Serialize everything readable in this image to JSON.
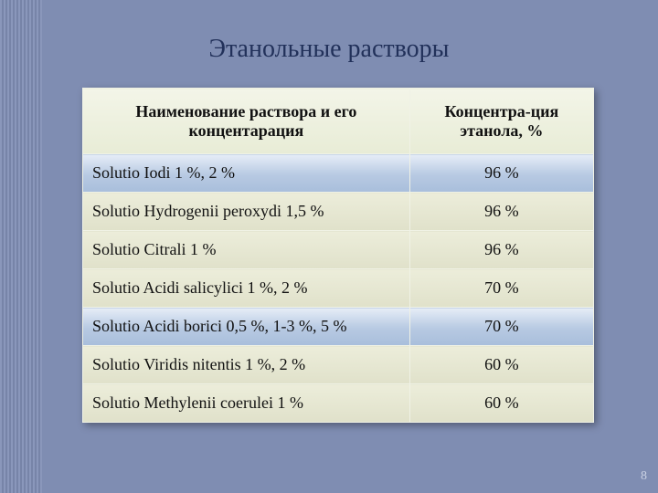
{
  "slide": {
    "title": "Этанольные растворы",
    "page_number": "8",
    "background_color": "#7f8db2",
    "title_color": "#22315a",
    "title_fontsize": 28
  },
  "table": {
    "columns": [
      {
        "label": "Наименование раствора и его концентарация",
        "width_pct": 64,
        "align": "left"
      },
      {
        "label": "Концентра-ция этанола, %",
        "width_pct": 36,
        "align": "center"
      }
    ],
    "header_bg": "#eef1e0",
    "row_bg_blue": "#b9cbe3",
    "row_bg_tan": "#e6e7d2",
    "border_color": "#f0f2e6",
    "cell_fontsize": 18,
    "rows": [
      {
        "name": "Solutio Iodi 1 %, 2 %",
        "conc": "96 %",
        "style": "blue"
      },
      {
        "name": "Solutio Hydrogenii peroxydi 1,5 %",
        "conc": "96 %",
        "style": "tan"
      },
      {
        "name": "Solutio Citrali 1 %",
        "conc": "96 %",
        "style": "tan"
      },
      {
        "name": "Solutio Acidi salicylici 1 %, 2 %",
        "conc": "70 %",
        "style": "tan"
      },
      {
        "name": "Solutio Acidi borici 0,5 %, 1-3 %, 5 %",
        "conc": "70 %",
        "style": "blue"
      },
      {
        "name": "Solutio Viridis nitentis 1 %, 2 %",
        "conc": "60 %",
        "style": "tan"
      },
      {
        "name": "Solutio Methylenii coerulei 1 %",
        "conc": "60 %",
        "style": "tan"
      }
    ]
  }
}
